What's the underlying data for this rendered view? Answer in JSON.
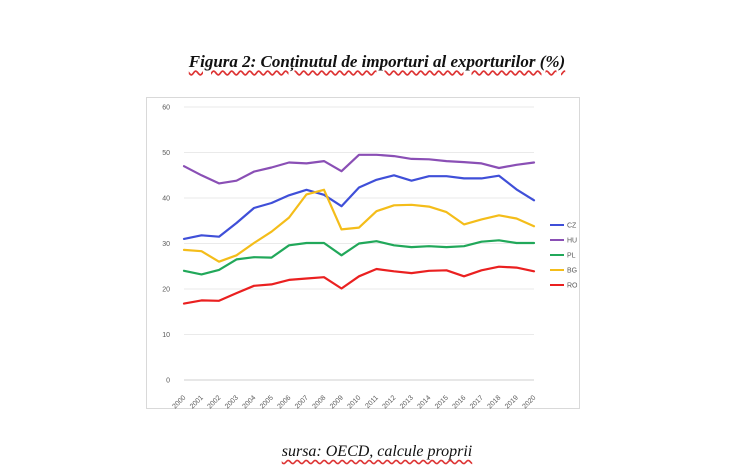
{
  "title": "Figura 2: Conținutul de importuri al exporturilor (%)",
  "source": "sursa: OECD, calcule proprii",
  "chart_data": {
    "type": "line",
    "x": [
      "2000",
      "2001",
      "2002",
      "2003",
      "2004",
      "2005",
      "2006",
      "2007",
      "2008",
      "2009",
      "2010",
      "2011",
      "2012",
      "2013",
      "2014",
      "2015",
      "2016",
      "2017",
      "2018",
      "2019",
      "2020"
    ],
    "ylim": [
      0,
      60
    ],
    "yticks": [
      0,
      10,
      20,
      30,
      40,
      50,
      60
    ],
    "grid": true,
    "legend_position": "right",
    "series": [
      {
        "name": "CZ",
        "color": "#3f4fd8",
        "values": [
          31.0,
          31.8,
          31.5,
          34.5,
          37.8,
          38.9,
          40.6,
          41.8,
          40.7,
          38.2,
          42.3,
          44.0,
          45.0,
          43.8,
          44.8,
          44.8,
          44.3,
          44.3,
          44.9,
          41.9,
          39.5
        ]
      },
      {
        "name": "HU",
        "color": "#8a4fb5",
        "values": [
          47.0,
          45.0,
          43.2,
          43.8,
          45.8,
          46.7,
          47.8,
          47.6,
          48.1,
          45.9,
          49.5,
          49.5,
          49.2,
          48.6,
          48.5,
          48.1,
          47.9,
          47.6,
          46.6,
          47.3,
          47.8
        ]
      },
      {
        "name": "PL",
        "color": "#21a85a",
        "values": [
          24.0,
          23.2,
          24.2,
          26.5,
          27.0,
          26.9,
          29.6,
          30.1,
          30.1,
          27.4,
          30.0,
          30.5,
          29.6,
          29.2,
          29.4,
          29.2,
          29.4,
          30.4,
          30.7,
          30.1,
          30.1
        ]
      },
      {
        "name": "BG",
        "color": "#f4bd1a",
        "values": [
          28.6,
          28.3,
          26.0,
          27.4,
          30.1,
          32.6,
          35.7,
          40.8,
          41.8,
          33.1,
          33.5,
          37.1,
          38.4,
          38.5,
          38.1,
          36.9,
          34.2,
          35.3,
          36.2,
          35.5,
          33.8
        ]
      },
      {
        "name": "RO",
        "color": "#ea2020",
        "values": [
          16.8,
          17.5,
          17.4,
          19.1,
          20.7,
          21.0,
          22.0,
          22.3,
          22.6,
          20.1,
          22.8,
          24.4,
          23.9,
          23.5,
          24.0,
          24.1,
          22.8,
          24.1,
          24.9,
          24.7,
          23.9
        ]
      }
    ]
  }
}
